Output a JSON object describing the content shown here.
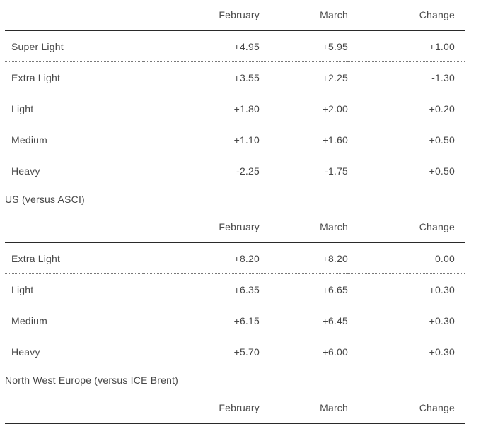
{
  "columns": [
    "February",
    "March",
    "Change"
  ],
  "tables": [
    {
      "section_label": "",
      "rows": [
        {
          "label": "Super Light",
          "february": "+4.95",
          "march": "+5.95",
          "change": "+1.00"
        },
        {
          "label": "Extra Light",
          "february": "+3.55",
          "march": "+2.25",
          "change": "-1.30"
        },
        {
          "label": "Light",
          "february": "+1.80",
          "march": "+2.00",
          "change": "+0.20"
        },
        {
          "label": "Medium",
          "february": "+1.10",
          "march": "+1.60",
          "change": "+0.50"
        },
        {
          "label": "Heavy",
          "february": "-2.25",
          "march": "-1.75",
          "change": "+0.50"
        }
      ]
    },
    {
      "section_label": "US (versus ASCI)",
      "rows": [
        {
          "label": "Extra Light",
          "february": "+8.20",
          "march": "+8.20",
          "change": "0.00"
        },
        {
          "label": "Light",
          "february": "+6.35",
          "march": "+6.65",
          "change": "+0.30"
        },
        {
          "label": "Medium",
          "february": "+6.15",
          "march": "+6.45",
          "change": "+0.30"
        },
        {
          "label": "Heavy",
          "february": "+5.70",
          "march": "+6.00",
          "change": "+0.30"
        }
      ]
    },
    {
      "section_label": "North West Europe (versus ICE Brent)",
      "rows": []
    }
  ],
  "colors": {
    "text": "#464646",
    "header_text": "#4d4d4d",
    "solid_rule": "#2a2a2a",
    "dotted_rule": "#787878",
    "background": "#ffffff"
  },
  "chart_data": [
    {
      "type": "table",
      "title": "",
      "columns": [
        "",
        "February",
        "March",
        "Change"
      ],
      "rows": [
        [
          "Super Light",
          4.95,
          5.95,
          1.0
        ],
        [
          "Extra Light",
          3.55,
          2.25,
          -1.3
        ],
        [
          "Light",
          1.8,
          2.0,
          0.2
        ],
        [
          "Medium",
          1.1,
          1.6,
          0.5
        ],
        [
          "Heavy",
          -2.25,
          -1.75,
          0.5
        ]
      ]
    },
    {
      "type": "table",
      "title": "US (versus ASCI)",
      "columns": [
        "",
        "February",
        "March",
        "Change"
      ],
      "rows": [
        [
          "Extra Light",
          8.2,
          8.2,
          0.0
        ],
        [
          "Light",
          6.35,
          6.65,
          0.3
        ],
        [
          "Medium",
          6.15,
          6.45,
          0.3
        ],
        [
          "Heavy",
          5.7,
          6.0,
          0.3
        ]
      ]
    },
    {
      "type": "table",
      "title": "North West Europe (versus ICE Brent)",
      "columns": [
        "",
        "February",
        "March",
        "Change"
      ],
      "rows": []
    }
  ]
}
